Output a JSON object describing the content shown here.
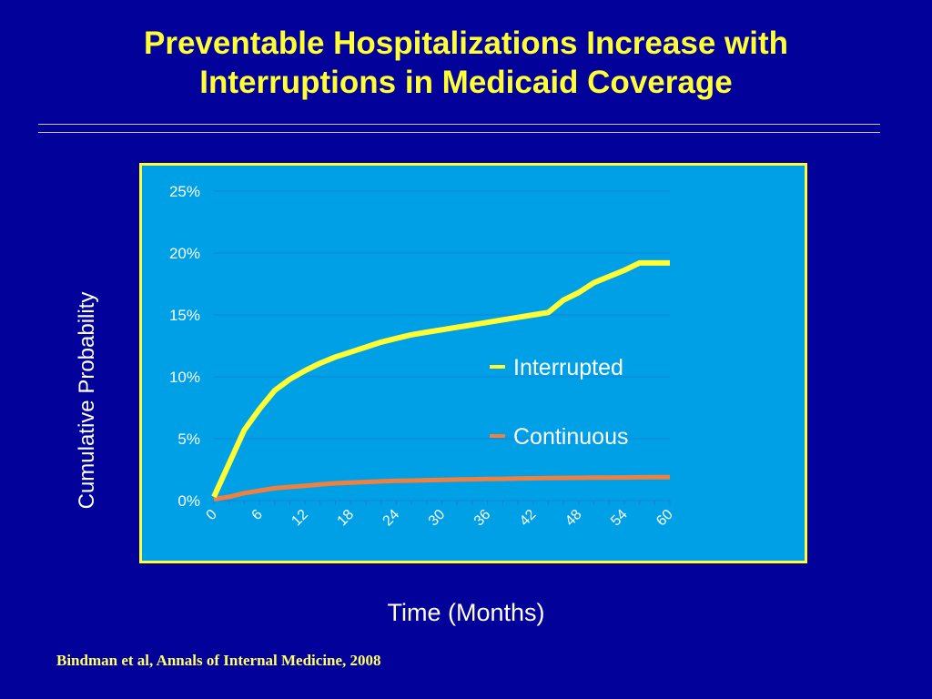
{
  "slide": {
    "title_line1": "Preventable Hospitalizations Increase with",
    "title_line2": "Interruptions in Medicaid Coverage",
    "citation": "Bindman et al, Annals of Internal Medicine, 2008"
  },
  "colors": {
    "background": "#02029a",
    "title": "#ffff33",
    "plot_area": "#00a0e6",
    "plot_border": "#ffff33",
    "gridline": "#1a7fd8",
    "interrupted": "#ffff33",
    "continuous": "#f08040"
  },
  "chart_data": {
    "type": "line",
    "title": "",
    "xlabel": "Time (Months)",
    "ylabel": "Cumulative Probability",
    "x": [
      0,
      2,
      4,
      6,
      8,
      10,
      12,
      14,
      16,
      18,
      20,
      22,
      24,
      26,
      28,
      30,
      32,
      34,
      36,
      38,
      40,
      42,
      44,
      46,
      48,
      50,
      52,
      54,
      56,
      58,
      60
    ],
    "x_ticks": [
      "0",
      "6",
      "12",
      "18",
      "24",
      "30",
      "36",
      "42",
      "48",
      "54",
      "60"
    ],
    "y_ticks": [
      "0%",
      "5%",
      "10%",
      "15%",
      "20%",
      "25%"
    ],
    "xlim": [
      0,
      60
    ],
    "ylim": [
      0,
      25
    ],
    "grid": "horizontal",
    "legend_position": "right",
    "series": [
      {
        "name": "Interrupted",
        "color": "#ffff33",
        "values": [
          0.3,
          3.0,
          5.7,
          7.4,
          8.9,
          9.8,
          10.5,
          11.1,
          11.6,
          12.0,
          12.4,
          12.8,
          13.1,
          13.4,
          13.6,
          13.8,
          14.0,
          14.2,
          14.4,
          14.6,
          14.8,
          15.0,
          15.2,
          16.2,
          16.8,
          17.6,
          18.1,
          18.6,
          19.2,
          19.2,
          19.2
        ]
      },
      {
        "name": "Continuous",
        "color": "#f08040",
        "values": [
          0.1,
          0.3,
          0.6,
          0.8,
          1.0,
          1.1,
          1.2,
          1.3,
          1.4,
          1.45,
          1.5,
          1.55,
          1.6,
          1.62,
          1.65,
          1.68,
          1.7,
          1.72,
          1.74,
          1.76,
          1.78,
          1.8,
          1.82,
          1.83,
          1.84,
          1.85,
          1.86,
          1.87,
          1.88,
          1.89,
          1.9
        ]
      }
    ]
  }
}
